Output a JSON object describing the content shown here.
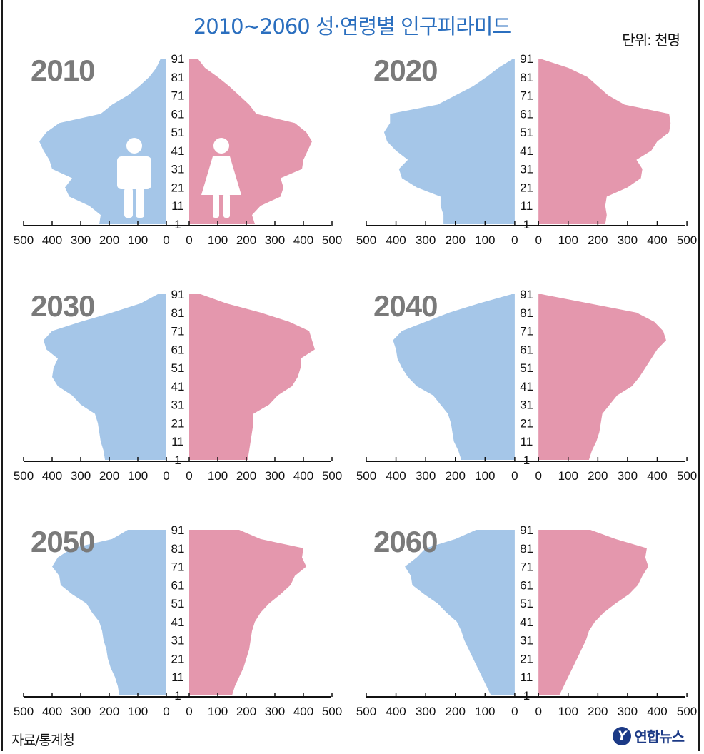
{
  "title": "2010~2060 성·연령별 인구피라미드",
  "unit": "단위: 천명",
  "source": "자료/통계청",
  "logo": {
    "mark": "Y",
    "text": "연합뉴스"
  },
  "colors": {
    "male": "#a5c6e8",
    "female": "#e497ad",
    "year_label": "#7a7a7a",
    "title": "#2b6fbf",
    "axis": "#111111"
  },
  "legend": {
    "male_icon": "male-figure-icon",
    "female_icon": "female-figure-icon"
  },
  "chart_data": [
    {
      "type": "area",
      "year": "2010",
      "title": "2010",
      "age_ticks": [
        1,
        11,
        21,
        31,
        41,
        51,
        61,
        71,
        81,
        91
      ],
      "x_ticks": [
        500,
        400,
        300,
        200,
        100,
        0
      ],
      "xlim": [
        0,
        500
      ],
      "ages": [
        1,
        6,
        11,
        16,
        21,
        26,
        31,
        36,
        41,
        46,
        51,
        56,
        61,
        66,
        71,
        76,
        81,
        86,
        91
      ],
      "series": [
        {
          "name": "남",
          "values": [
            235,
            230,
            270,
            340,
            355,
            330,
            400,
            410,
            430,
            445,
            420,
            375,
            230,
            190,
            135,
            95,
            60,
            35,
            20
          ]
        },
        {
          "name": "여",
          "values": [
            230,
            220,
            250,
            320,
            330,
            320,
            395,
            400,
            415,
            430,
            410,
            370,
            235,
            210,
            175,
            140,
            100,
            55,
            30
          ]
        }
      ]
    },
    {
      "type": "area",
      "year": "2020",
      "title": "2020",
      "age_ticks": [
        1,
        11,
        21,
        31,
        41,
        51,
        61,
        71,
        81,
        91
      ],
      "x_ticks": [
        500,
        400,
        300,
        200,
        100,
        0
      ],
      "xlim": [
        0,
        500
      ],
      "ages": [
        1,
        6,
        11,
        16,
        21,
        26,
        31,
        36,
        41,
        46,
        51,
        56,
        61,
        66,
        71,
        76,
        81,
        86,
        91
      ],
      "series": [
        {
          "name": "남",
          "values": [
            240,
            240,
            250,
            250,
            330,
            380,
            390,
            360,
            400,
            430,
            440,
            420,
            420,
            260,
            200,
            140,
            95,
            55,
            5
          ]
        },
        {
          "name": "여",
          "values": [
            225,
            230,
            225,
            230,
            300,
            345,
            350,
            330,
            380,
            400,
            440,
            445,
            440,
            290,
            235,
            200,
            165,
            100,
            5
          ]
        }
      ]
    },
    {
      "type": "area",
      "year": "2030",
      "title": "2030",
      "age_ticks": [
        1,
        11,
        21,
        31,
        41,
        51,
        61,
        71,
        81,
        91
      ],
      "x_ticks": [
        500,
        400,
        300,
        200,
        100,
        0
      ],
      "xlim": [
        0,
        500
      ],
      "ages": [
        1,
        6,
        11,
        16,
        21,
        26,
        31,
        36,
        41,
        46,
        51,
        56,
        61,
        66,
        71,
        76,
        81,
        86,
        91
      ],
      "series": [
        {
          "name": "남",
          "values": [
            215,
            220,
            230,
            235,
            240,
            250,
            300,
            330,
            380,
            400,
            395,
            380,
            420,
            430,
            400,
            300,
            190,
            90,
            30
          ]
        },
        {
          "name": "여",
          "values": [
            205,
            210,
            215,
            220,
            225,
            225,
            280,
            310,
            360,
            380,
            390,
            390,
            440,
            430,
            420,
            350,
            250,
            130,
            40
          ]
        }
      ]
    },
    {
      "type": "area",
      "year": "2040",
      "title": "2040",
      "age_ticks": [
        1,
        11,
        21,
        31,
        41,
        51,
        61,
        71,
        81,
        91
      ],
      "x_ticks": [
        500,
        400,
        300,
        200,
        100,
        0
      ],
      "xlim": [
        0,
        500
      ],
      "ages": [
        1,
        6,
        11,
        16,
        21,
        26,
        31,
        36,
        41,
        46,
        51,
        56,
        61,
        66,
        71,
        76,
        81,
        86,
        91
      ],
      "series": [
        {
          "name": "남",
          "values": [
            180,
            190,
            205,
            210,
            215,
            225,
            250,
            275,
            330,
            360,
            380,
            395,
            400,
            410,
            380,
            300,
            220,
            120,
            10
          ]
        },
        {
          "name": "여",
          "values": [
            170,
            180,
            195,
            205,
            210,
            215,
            240,
            265,
            315,
            340,
            360,
            380,
            400,
            430,
            420,
            390,
            330,
            170,
            10
          ]
        }
      ]
    },
    {
      "type": "area",
      "year": "2050",
      "title": "2050",
      "age_ticks": [
        1,
        11,
        21,
        31,
        41,
        51,
        61,
        71,
        81,
        91
      ],
      "x_ticks": [
        500,
        400,
        300,
        200,
        100,
        0
      ],
      "xlim": [
        0,
        500
      ],
      "ages": [
        1,
        6,
        11,
        16,
        21,
        26,
        31,
        36,
        41,
        46,
        51,
        56,
        61,
        66,
        71,
        76,
        81,
        86,
        91
      ],
      "series": [
        {
          "name": "남",
          "values": [
            165,
            170,
            180,
            195,
            205,
            210,
            220,
            225,
            235,
            260,
            280,
            330,
            370,
            375,
            400,
            380,
            330,
            190,
            135
          ]
        },
        {
          "name": "여",
          "values": [
            150,
            160,
            175,
            190,
            200,
            210,
            215,
            220,
            230,
            250,
            280,
            320,
            355,
            370,
            410,
            395,
            400,
            250,
            175
          ]
        }
      ]
    },
    {
      "type": "area",
      "year": "2060",
      "title": "2060",
      "age_ticks": [
        1,
        11,
        21,
        31,
        41,
        51,
        61,
        71,
        81,
        91
      ],
      "x_ticks": [
        500,
        400,
        300,
        200,
        100,
        0
      ],
      "xlim": [
        0,
        500
      ],
      "ages": [
        1,
        6,
        11,
        16,
        21,
        26,
        31,
        36,
        41,
        46,
        51,
        56,
        61,
        66,
        71,
        76,
        81,
        86,
        91
      ],
      "series": [
        {
          "name": "남",
          "values": [
            80,
            95,
            110,
            125,
            140,
            155,
            170,
            180,
            195,
            230,
            260,
            305,
            345,
            350,
            370,
            330,
            300,
            200,
            130
          ]
        },
        {
          "name": "여",
          "values": [
            70,
            85,
            100,
            115,
            130,
            145,
            160,
            170,
            190,
            220,
            260,
            305,
            335,
            350,
            370,
            360,
            365,
            260,
            175
          ]
        }
      ]
    }
  ]
}
